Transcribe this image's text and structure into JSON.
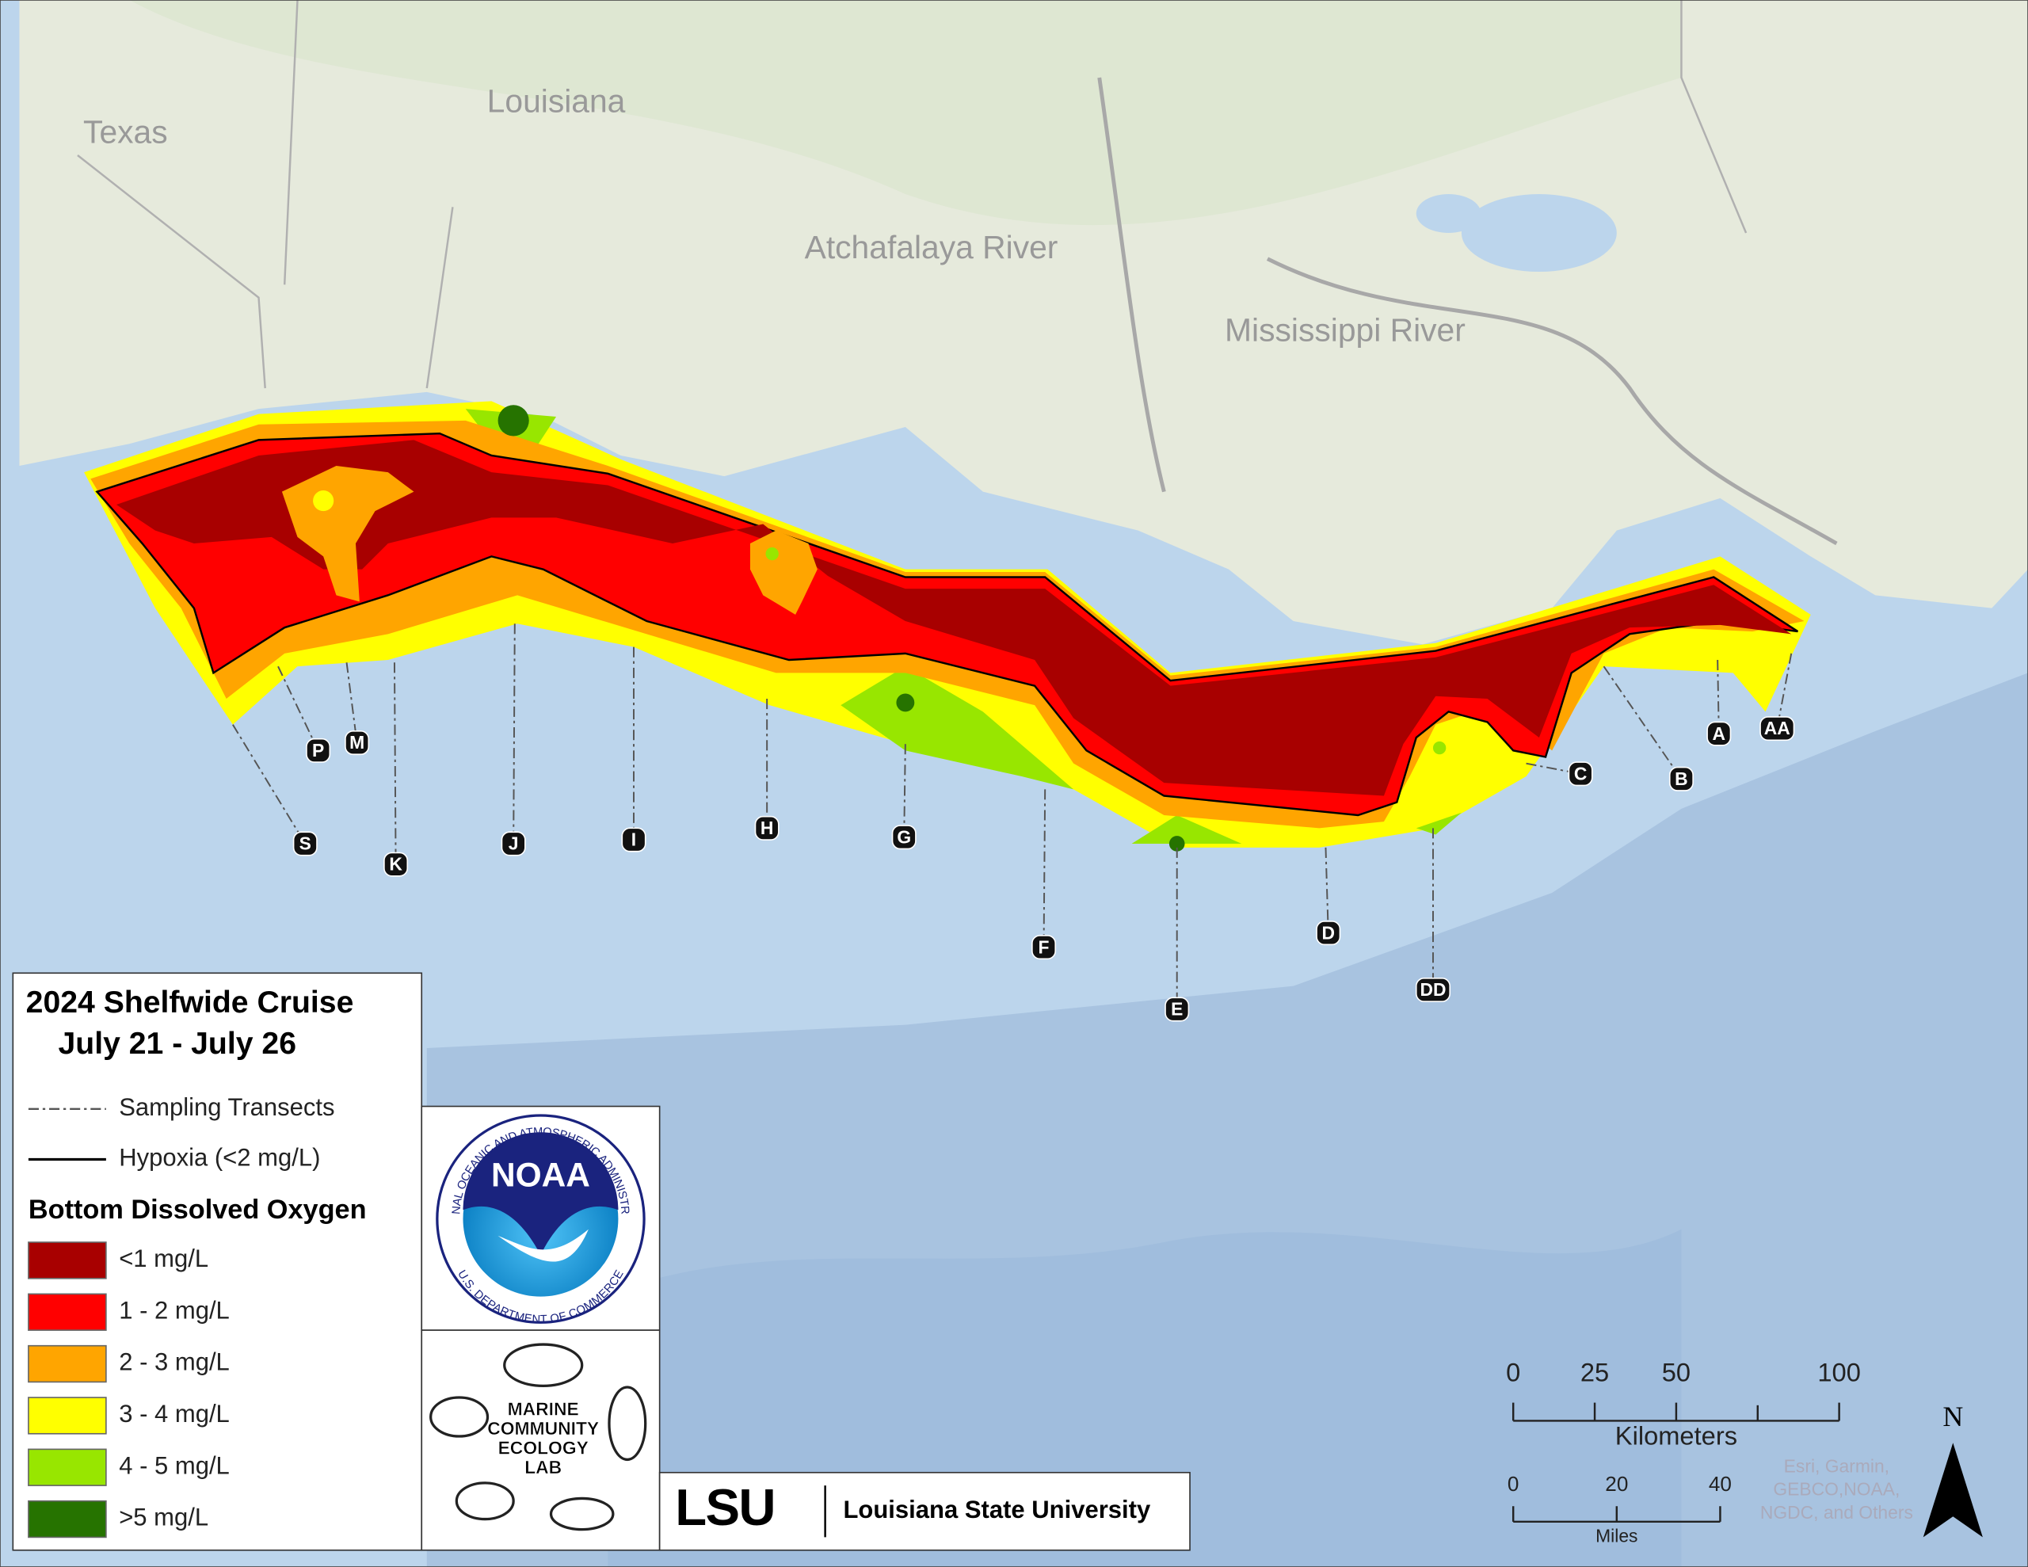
{
  "map": {
    "places": [
      "Texas",
      "Louisiana",
      "Atchafalaya River",
      "Mississippi River"
    ],
    "transects": [
      "S",
      "P",
      "M",
      "K",
      "J",
      "I",
      "H",
      "G",
      "F",
      "E",
      "D",
      "DD",
      "C",
      "B",
      "A",
      "AA"
    ],
    "legend": {
      "title": "2024 Shelfwide Cruise",
      "dates": "July 21 - July 26",
      "sampling": "Sampling Transects",
      "hypoxia": "Hypoxia (<2 mg/L)",
      "heading": "Bottom Dissolved Oxygen",
      "classes": [
        {
          "label": "<1 mg/L",
          "color": "#a80000"
        },
        {
          "label": "1 - 2 mg/L",
          "color": "#ff0000"
        },
        {
          "label": "2 - 3 mg/L",
          "color": "#ffa500"
        },
        {
          "label": "3 - 4 mg/L",
          "color": "#ffff00"
        },
        {
          "label": "4 - 5 mg/L",
          "color": "#98e600"
        },
        {
          "label": ">5 mg/L",
          "color": "#267300"
        }
      ]
    },
    "scale": {
      "km_ticks": [
        0,
        25,
        50,
        100
      ],
      "km_label": "Kilometers",
      "mi_ticks": [
        0,
        20,
        40
      ],
      "mi_label": "Miles"
    },
    "north": "N",
    "attribution": [
      "Esri, Garmin,",
      "GEBCO,NOAA,",
      "NGDC, and Others"
    ],
    "logos": {
      "noaa": "NOAA",
      "noaa_ring_top": "NATIONAL OCEANIC AND ATMOSPHERIC ADMINISTRATION",
      "noaa_ring_bottom": "U.S. DEPARTMENT OF COMMERCE",
      "lab": [
        "MARINE",
        "COMMUNITY",
        "ECOLOGY",
        "LAB"
      ],
      "lsu": "LSU",
      "university": "Louisiana State University"
    }
  }
}
